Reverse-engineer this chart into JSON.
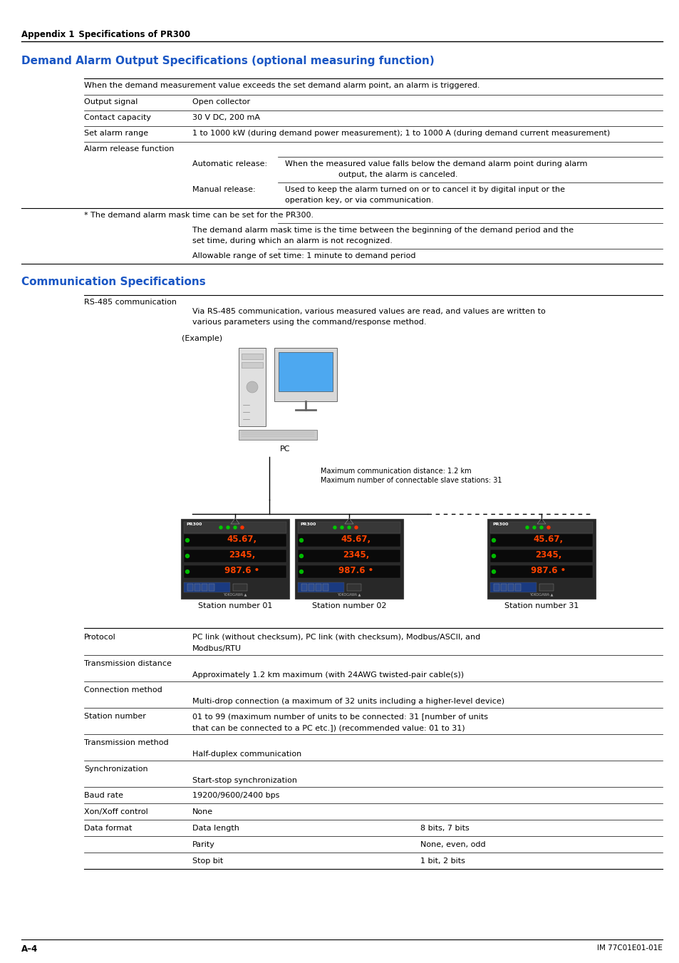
{
  "page_bg": "#ffffff",
  "header_text_bold": "Appendix 1",
  "header_text_normal": "   Specifications of PR300",
  "section1_title": "Demand Alarm Output Specifications (optional measuring function)",
  "section1_color": "#1a56c4",
  "section2_title": "Communication Specifications",
  "section2_color": "#1a56c4",
  "footer_left": "A–4",
  "footer_right": "IM 77C01E01-01E"
}
